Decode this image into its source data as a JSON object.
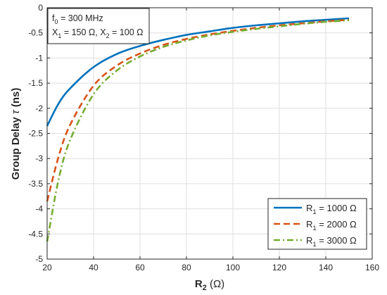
{
  "chart_data": {
    "type": "line",
    "title": "",
    "xlabel": "R_2 (Ω)",
    "ylabel": "Group Delay τ (ns)",
    "xlim": [
      20,
      160
    ],
    "ylim": [
      -5,
      0
    ],
    "xticks": [
      20,
      40,
      60,
      80,
      100,
      120,
      140,
      160
    ],
    "yticks": [
      -5,
      -4.5,
      -4,
      -3.5,
      -3,
      -2.5,
      -2,
      -1.5,
      -1,
      -0.5,
      0
    ],
    "grid": true,
    "legend_position": "bottom-right",
    "x": [
      20,
      25,
      30,
      40,
      50,
      60,
      70,
      80,
      90,
      100,
      110,
      120,
      130,
      140,
      150
    ],
    "series": [
      {
        "name": "R_1 = 1000 Ω",
        "style": "solid",
        "color": "#0072BD",
        "values": [
          -2.35,
          -1.9,
          -1.6,
          -1.18,
          -0.92,
          -0.76,
          -0.64,
          -0.54,
          -0.47,
          -0.4,
          -0.35,
          -0.31,
          -0.27,
          -0.24,
          -0.21
        ]
      },
      {
        "name": "R_1 = 2000 Ω",
        "style": "dashed",
        "color": "#D95319",
        "values": [
          -3.85,
          -2.95,
          -2.32,
          -1.55,
          -1.15,
          -0.91,
          -0.74,
          -0.62,
          -0.53,
          -0.46,
          -0.4,
          -0.35,
          -0.31,
          -0.27,
          -0.24
        ]
      },
      {
        "name": "R_1 = 3000 Ω",
        "style": "dashdot",
        "color": "#77AC30",
        "values": [
          -4.65,
          -3.4,
          -2.62,
          -1.72,
          -1.25,
          -0.97,
          -0.78,
          -0.65,
          -0.55,
          -0.48,
          -0.42,
          -0.37,
          -0.32,
          -0.28,
          -0.25
        ]
      }
    ],
    "annotation": {
      "line1": "f_0 = 300 MHz",
      "line2": "X_1 = 150 Ω, X_2 = 100 Ω"
    }
  }
}
